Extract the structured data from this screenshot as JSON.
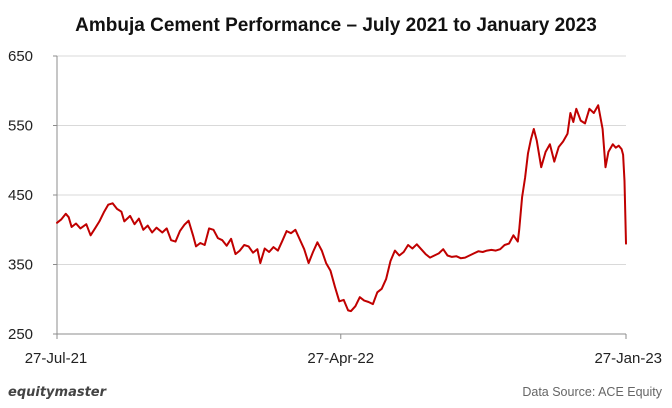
{
  "chart_data": {
    "type": "line",
    "title": "Ambuja Cement Performance – July 2021 to January 2023",
    "xlabel": "",
    "ylabel": "",
    "ylim": [
      250,
      650
    ],
    "yticks": [
      650,
      550,
      450,
      350,
      250
    ],
    "xticks": [
      {
        "label": "27-Jul-21",
        "index": 0
      },
      {
        "label": "27-Apr-22",
        "index": 194
      },
      {
        "label": "27-Jan-23",
        "index": 389
      }
    ],
    "line_color": "#c00000",
    "series": [
      {
        "name": "Ambuja Cement",
        "x_range": [
          0,
          389
        ],
        "points": [
          [
            0,
            410
          ],
          [
            3,
            415
          ],
          [
            6,
            423
          ],
          [
            8,
            418
          ],
          [
            10,
            404
          ],
          [
            13,
            409
          ],
          [
            16,
            402
          ],
          [
            20,
            408
          ],
          [
            23,
            392
          ],
          [
            26,
            402
          ],
          [
            29,
            412
          ],
          [
            32,
            425
          ],
          [
            35,
            436
          ],
          [
            38,
            438
          ],
          [
            41,
            430
          ],
          [
            44,
            426
          ],
          [
            46,
            412
          ],
          [
            50,
            420
          ],
          [
            53,
            408
          ],
          [
            56,
            416
          ],
          [
            59,
            400
          ],
          [
            62,
            406
          ],
          [
            65,
            396
          ],
          [
            68,
            403
          ],
          [
            72,
            396
          ],
          [
            75,
            402
          ],
          [
            78,
            385
          ],
          [
            81,
            383
          ],
          [
            84,
            398
          ],
          [
            87,
            407
          ],
          [
            90,
            413
          ],
          [
            93,
            392
          ],
          [
            95,
            376
          ],
          [
            98,
            381
          ],
          [
            101,
            378
          ],
          [
            104,
            402
          ],
          [
            107,
            400
          ],
          [
            110,
            388
          ],
          [
            113,
            385
          ],
          [
            116,
            377
          ],
          [
            119,
            387
          ],
          [
            122,
            365
          ],
          [
            125,
            370
          ],
          [
            128,
            378
          ],
          [
            131,
            376
          ],
          [
            134,
            367
          ],
          [
            137,
            372
          ],
          [
            139,
            352
          ],
          [
            142,
            373
          ],
          [
            145,
            368
          ],
          [
            148,
            375
          ],
          [
            151,
            370
          ],
          [
            154,
            384
          ],
          [
            157,
            398
          ],
          [
            160,
            395
          ],
          [
            163,
            400
          ],
          [
            166,
            386
          ],
          [
            169,
            372
          ],
          [
            172,
            352
          ],
          [
            175,
            368
          ],
          [
            178,
            382
          ],
          [
            181,
            370
          ],
          [
            184,
            352
          ],
          [
            187,
            341
          ],
          [
            190,
            318
          ],
          [
            193,
            297
          ],
          [
            196,
            299
          ],
          [
            199,
            284
          ],
          [
            201,
            283
          ],
          [
            204,
            290
          ],
          [
            207,
            303
          ],
          [
            210,
            298
          ],
          [
            213,
            296
          ],
          [
            216,
            293
          ],
          [
            219,
            310
          ],
          [
            222,
            315
          ],
          [
            225,
            329
          ],
          [
            228,
            355
          ],
          [
            231,
            370
          ],
          [
            234,
            363
          ],
          [
            237,
            368
          ],
          [
            240,
            378
          ],
          [
            243,
            373
          ],
          [
            246,
            379
          ],
          [
            249,
            372
          ],
          [
            252,
            365
          ],
          [
            255,
            360
          ],
          [
            258,
            363
          ],
          [
            261,
            366
          ],
          [
            264,
            372
          ],
          [
            267,
            363
          ],
          [
            270,
            361
          ],
          [
            273,
            362
          ],
          [
            276,
            359
          ],
          [
            279,
            360
          ],
          [
            282,
            363
          ],
          [
            285,
            366
          ],
          [
            288,
            369
          ],
          [
            291,
            368
          ],
          [
            294,
            370
          ],
          [
            297,
            371
          ],
          [
            300,
            370
          ],
          [
            303,
            372
          ],
          [
            306,
            378
          ],
          [
            309,
            380
          ],
          [
            312,
            392
          ],
          [
            315,
            383
          ],
          [
            316,
            400
          ],
          [
            318,
            447
          ],
          [
            320,
            475
          ],
          [
            322,
            510
          ],
          [
            324,
            530
          ],
          [
            326,
            545
          ],
          [
            328,
            528
          ],
          [
            331,
            490
          ],
          [
            334,
            512
          ],
          [
            337,
            523
          ],
          [
            340,
            498
          ],
          [
            343,
            519
          ],
          [
            346,
            527
          ],
          [
            349,
            538
          ],
          [
            351,
            568
          ],
          [
            353,
            555
          ],
          [
            355,
            574
          ],
          [
            358,
            557
          ],
          [
            361,
            553
          ],
          [
            364,
            574
          ],
          [
            367,
            568
          ],
          [
            370,
            579
          ],
          [
            373,
            545
          ],
          [
            375,
            490
          ],
          [
            377,
            512
          ],
          [
            380,
            523
          ],
          [
            382,
            518
          ],
          [
            384,
            521
          ],
          [
            386,
            516
          ],
          [
            387,
            508
          ],
          [
            388,
            470
          ],
          [
            389,
            380
          ]
        ]
      }
    ],
    "grid": true
  },
  "footer": {
    "brand": "equitymaster",
    "source": "Data Source: ACE Equity"
  }
}
